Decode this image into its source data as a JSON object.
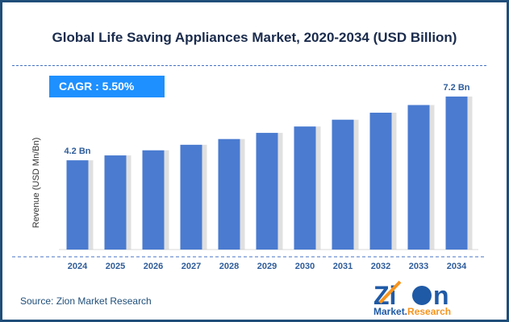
{
  "chart_data": {
    "type": "bar",
    "title": "Global Life Saving Appliances Market, 2020-2034 (USD Billion)",
    "ylabel": "Revenue (USD Mn/Bn)",
    "xlabel": "",
    "categories": [
      "2024",
      "2025",
      "2026",
      "2027",
      "2028",
      "2029",
      "2030",
      "2031",
      "2032",
      "2033",
      "2034"
    ],
    "values": [
      4.2,
      4.43,
      4.67,
      4.93,
      5.2,
      5.49,
      5.79,
      6.11,
      6.44,
      6.8,
      7.2
    ],
    "data_labels": {
      "first": "4.2 Bn",
      "last": "7.2 Bn"
    },
    "ylim": [
      0,
      7.8
    ],
    "grid": false,
    "bar_color": "#4a7bd0"
  },
  "cagr": "CAGR :  5.50%",
  "source": "Source: Zion Market Research",
  "logo": {
    "top": "Zion",
    "bottom": "Market.Research"
  }
}
